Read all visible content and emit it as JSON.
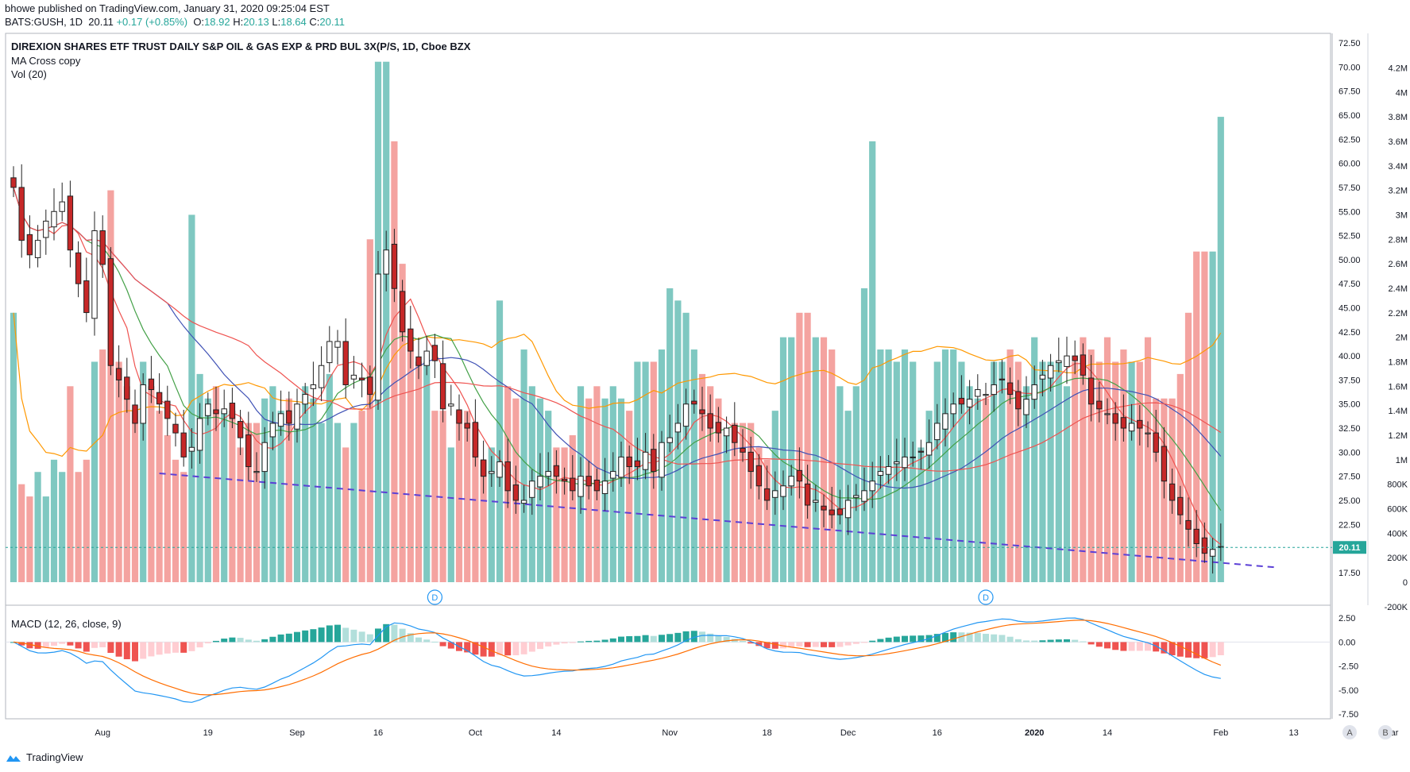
{
  "header": {
    "publisher_line": "bhowe published on TradingView.com, January 31, 2020 09:25:04 EST",
    "symbol": "BATS:GUSH, 1D",
    "last": "20.11",
    "change": "+0.17 (+0.85%)",
    "O": "18.92",
    "H": "20.13",
    "L": "18.64",
    "C": "20.11",
    "up_arrow": "▲",
    "labels": {
      "o": "O:",
      "h": "H:",
      "l": "L:",
      "c": "C:"
    }
  },
  "legend": {
    "title": "DIREXION SHARES ETF TRUST DAILY S&P OIL & GAS EXP & PRD BUL 3X(P/S, 1D, Cboe BZX",
    "ma": "MA Cross copy",
    "vol": "Vol (20)",
    "macd": "MACD (12, 26, close, 9)"
  },
  "footer": {
    "brand": "TradingView",
    "btn_a": "A",
    "btn_b": "B"
  },
  "colors": {
    "up": "#26a69a",
    "down": "#ef5350",
    "vol_up": "#7fc8c1",
    "vol_down": "#f4a3a0",
    "ma_green": "#43a047",
    "ma_red": "#ef5350",
    "ma_blue": "#3f51b5",
    "ma_orange": "#ff9800",
    "trend": "#5b3fd6",
    "macd_line": "#2196f3",
    "signal_line": "#ff6d00"
  },
  "chart_data": [
    {
      "type": "candlestick",
      "title": "BATS:GUSH, 1D",
      "y_ticks": [
        "72.50",
        "70.00",
        "67.50",
        "65.00",
        "62.50",
        "60.00",
        "57.50",
        "55.00",
        "52.50",
        "50.00",
        "47.50",
        "45.00",
        "42.50",
        "40.00",
        "37.50",
        "35.00",
        "32.50",
        "30.00",
        "27.50",
        "25.00",
        "22.50",
        "17.50"
      ],
      "ylim": [
        16.5,
        73.5
      ],
      "last_price_label": "20.11",
      "last_price": 20.11,
      "x_ticks": [
        {
          "label": "Aug",
          "i": 11
        },
        {
          "label": "19",
          "i": 24
        },
        {
          "label": "Sep",
          "i": 35
        },
        {
          "label": "16",
          "i": 45
        },
        {
          "label": "Oct",
          "i": 57
        },
        {
          "label": "14",
          "i": 67
        },
        {
          "label": "Nov",
          "i": 81
        },
        {
          "label": "18",
          "i": 93
        },
        {
          "label": "Dec",
          "i": 103
        },
        {
          "label": "16",
          "i": 114
        },
        {
          "label": "2020",
          "i": 126
        },
        {
          "label": "14",
          "i": 135
        },
        {
          "label": "Feb",
          "i": 149
        },
        {
          "label": "13",
          "i": 158
        },
        {
          "label": "Mar",
          "i": 170
        }
      ],
      "dividend_markers": [
        {
          "label": "D",
          "i": 52
        },
        {
          "label": "D",
          "i": 120
        }
      ],
      "close": [
        57.5,
        52,
        50.5,
        52,
        54,
        55,
        56,
        51,
        47.5,
        44.5,
        53,
        49.5,
        39,
        37.5,
        35.5,
        33,
        37,
        36.5,
        35,
        33.5,
        32,
        29.5,
        30.5,
        33.5,
        35,
        34,
        34.5,
        33.5,
        31.5,
        28.5,
        28,
        31,
        33,
        34,
        33,
        35,
        36,
        37,
        39,
        41.5,
        41.5,
        37,
        38,
        37.5,
        36,
        48.5,
        51,
        47,
        42.5,
        40.5,
        39,
        40.5,
        39.5,
        34.5,
        35,
        33,
        32.5,
        29.5,
        27.5,
        28,
        29,
        26,
        25,
        25,
        27,
        27.5,
        28,
        27.5,
        27,
        26,
        27.5,
        26.5,
        26,
        27,
        28,
        29.5,
        28.5,
        28.5,
        30,
        28,
        31,
        31.5,
        33,
        35,
        35,
        34,
        32.5,
        32,
        32.5,
        31,
        30,
        28,
        26.5,
        25,
        26,
        26.5,
        27.5,
        27,
        24.5,
        25,
        24,
        23.5,
        23.5,
        25,
        25.5,
        26,
        27,
        28,
        28.5,
        29,
        29.5,
        29.5,
        30,
        31,
        33,
        34,
        35,
        35,
        35.5,
        36.5,
        36,
        37,
        37.5,
        36,
        34.5,
        35.5,
        37,
        38,
        39,
        39.5,
        40,
        39.5,
        38,
        35,
        34.5,
        34,
        33,
        32.5,
        33,
        32.5,
        32,
        30,
        27,
        25,
        23.5,
        22,
        20.5,
        19.5,
        19.9,
        20.11
      ],
      "volume_scale": {
        "ticks": [
          "4.2M",
          "4M",
          "3.8M",
          "3.6M",
          "3.4M",
          "3.2M",
          "3M",
          "2.8M",
          "2.6M",
          "2.4M",
          "2.2M",
          "2M",
          "1.8M",
          "1.6M",
          "1.4M",
          "1.2M",
          "1M",
          "800K",
          "600K",
          "400K",
          "200K",
          "0",
          "-200K"
        ],
        "ylim": [
          -250000,
          4300000
        ]
      },
      "volume": [
        2.2,
        0.8,
        0.7,
        0.9,
        0.7,
        1.0,
        0.9,
        1.6,
        0.9,
        1.0,
        1.8,
        1.9,
        3.2,
        1.8,
        1.6,
        1.4,
        1.8,
        1.6,
        1.4,
        1.2,
        1.0,
        0.9,
        3.0,
        1.7,
        1.5,
        1.6,
        1.4,
        1.4,
        1.1,
        1.3,
        1.3,
        1.5,
        1.6,
        1.4,
        1.5,
        1.3,
        1.6,
        1.5,
        1.3,
        1.7,
        1.3,
        1.1,
        1.3,
        1.4,
        2.8,
        4.25,
        4.25,
        3.6,
        2.6,
        2.0,
        1.8,
        1.8,
        1.4,
        1.4,
        1.1,
        1.4,
        1.4,
        1.3,
        1.0,
        1.1,
        2.3,
        1.6,
        1.5,
        1.9,
        1.6,
        1.5,
        1.4,
        1.1,
        1.1,
        1.2,
        1.6,
        1.5,
        1.6,
        1.5,
        1.6,
        1.5,
        1.4,
        1.8,
        1.8,
        1.8,
        1.9,
        2.4,
        2.3,
        2.2,
        1.9,
        1.7,
        1.6,
        1.5,
        1.2,
        1.3,
        1.3,
        1.3,
        1.1,
        1.0,
        1.4,
        2.0,
        2.0,
        2.2,
        2.2,
        2.0,
        2.0,
        1.9,
        1.6,
        1.4,
        1.6,
        2.4,
        3.6,
        1.9,
        1.9,
        1.8,
        1.9,
        1.8,
        1.1,
        1.4,
        1.8,
        1.9,
        1.9,
        1.8,
        1.6,
        1.5,
        1.5,
        1.8,
        1.8,
        1.9,
        1.8,
        1.6,
        2.0,
        1.8,
        1.8,
        1.8,
        1.6,
        1.8,
        2.0,
        1.9,
        1.8,
        2.0,
        1.8,
        1.9,
        1.8,
        1.8,
        2.0,
        1.5,
        1.5,
        1.5,
        1.7,
        2.2,
        2.7,
        2.7,
        2.7,
        3.8
      ],
      "trendline": {
        "from": {
          "i": 18,
          "price": 27.8
        },
        "to": {
          "i": 153,
          "price": 18.0
        }
      }
    },
    {
      "type": "macd",
      "title": "MACD (12, 26, close, 9)",
      "y_ticks": [
        "2.50",
        "0.00",
        "-2.50",
        "-5.00",
        "-7.50"
      ],
      "ylim": [
        -8,
        3.1
      ]
    }
  ]
}
